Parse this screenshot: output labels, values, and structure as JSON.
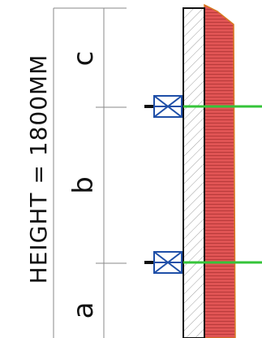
{
  "diagram": {
    "height_label": "HEIGHT = 1800MM",
    "sections": [
      "a",
      "b",
      "c"
    ],
    "colors": {
      "dimension_line": "#8a8a8a",
      "bracket": "#1f4fa8",
      "cross_beam": "#35c43a",
      "red_panel": "#e05454",
      "red_edge": "#d87a22",
      "wall_outline": "#111111",
      "hatch": "#9a9a9a"
    }
  }
}
